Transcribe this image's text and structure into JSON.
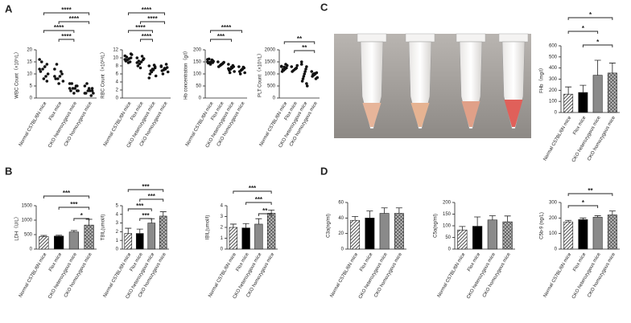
{
  "panel_labels": [
    "A",
    "C",
    "B",
    "D"
  ],
  "chart_data": [
    {
      "type": "dot",
      "ylabel": "WBC Count（×10⁹/L）",
      "categories": [
        "Normal C57BL/6N mice",
        "Flox mice",
        "CKO heterozygous mice",
        "CKO homozygous mice"
      ],
      "values": [
        [
          16,
          14,
          13,
          12,
          11,
          10,
          9,
          8,
          15,
          12,
          7,
          13
        ],
        [
          12,
          10,
          9,
          8,
          8,
          7,
          11,
          6,
          14,
          9
        ],
        [
          6,
          5,
          4,
          4,
          3,
          3,
          5,
          2,
          6,
          4,
          3
        ],
        [
          5,
          4,
          3,
          3,
          2,
          2,
          1,
          4,
          6,
          2,
          3
        ]
      ],
      "ylim": [
        0,
        20
      ],
      "yticks": [
        0,
        5,
        10,
        15,
        20
      ],
      "brackets": [
        {
          "groups": [
            "Normal C57BL/6N mice",
            "CKO homozygous mice"
          ],
          "label": "****"
        },
        {
          "groups": [
            "Flox mice",
            "CKO homozygous mice"
          ],
          "label": "****"
        },
        {
          "groups": [
            "Normal C57BL/6N mice",
            "CKO heterozygous mice"
          ],
          "label": "****"
        },
        {
          "groups": [
            "Flox mice",
            "CKO heterozygous mice"
          ],
          "label": "****"
        }
      ]
    },
    {
      "type": "dot",
      "ylabel": "RBC Count（×10¹²/L）",
      "categories": [
        "Normal C57BL/6N mice",
        "Flox mice",
        "CKO heterozygous mice",
        "CKO homozygous mice"
      ],
      "values": [
        [
          10.5,
          10,
          9.8,
          9.5,
          9.2,
          10.8,
          9,
          8.8,
          10.2,
          9.6,
          11
        ],
        [
          10,
          9.5,
          9,
          8.5,
          8,
          9.8,
          10.4,
          7.5,
          9.2,
          8.8
        ],
        [
          8,
          7.5,
          7,
          6.5,
          6,
          5.5,
          8.2,
          7.2,
          6.8,
          5,
          7.8
        ],
        [
          8,
          7.6,
          7.2,
          7,
          6.8,
          6.5,
          8.4,
          7.4,
          6,
          7.8
        ]
      ],
      "ylim": [
        0,
        12
      ],
      "yticks": [
        0,
        2,
        4,
        6,
        8,
        10,
        12
      ],
      "brackets": [
        {
          "groups": [
            "Normal C57BL/6N mice",
            "CKO homozygous mice"
          ],
          "label": "****"
        },
        {
          "groups": [
            "Flox mice",
            "CKO homozygous mice"
          ],
          "label": "****"
        },
        {
          "groups": [
            "Normal C57BL/6N mice",
            "CKO heterozygous mice"
          ],
          "label": "****"
        },
        {
          "groups": [
            "Flox mice",
            "CKO heterozygous mice"
          ],
          "label": "****"
        }
      ]
    },
    {
      "type": "dot",
      "ylabel": "Hb concentration（g/l）",
      "categories": [
        "Normal C57BL/6N mice",
        "Flox mice",
        "CKO heterozygous mice",
        "CKO homozygous mice"
      ],
      "values": [
        [
          160,
          155,
          150,
          148,
          145,
          152,
          158,
          140,
          162,
          150,
          147
        ],
        [
          150,
          145,
          140,
          135,
          130,
          148,
          142,
          138
        ],
        [
          140,
          130,
          125,
          120,
          115,
          110,
          135,
          128,
          105,
          122
        ],
        [
          130,
          125,
          120,
          115,
          110,
          105,
          128,
          118,
          100
        ]
      ],
      "ylim": [
        0,
        200
      ],
      "yticks": [
        0,
        50,
        100,
        150,
        200
      ],
      "brackets": [
        {
          "groups": [
            "Normal C57BL/6N mice",
            "CKO homozygous mice"
          ],
          "label": "****"
        },
        {
          "groups": [
            "Normal C57BL/6N mice",
            "CKO heterozygous mice"
          ],
          "label": "***"
        }
      ]
    },
    {
      "type": "dot",
      "ylabel": "PLT Count（×10⁹/L）",
      "categories": [
        "Normal C57BL/6N mice",
        "Flox mice",
        "CKO heterozygous mice",
        "CKO homozygous mice"
      ],
      "values": [
        [
          1300,
          1250,
          1200,
          1150,
          1100,
          1350,
          1400,
          1280,
          1180,
          1320
        ],
        [
          1300,
          1250,
          1200,
          1150,
          1100,
          1350,
          1220
        ],
        [
          1500,
          1300,
          1100,
          900,
          700,
          500,
          1200,
          1000,
          800,
          1400,
          600
        ],
        [
          1100,
          1050,
          1000,
          950,
          900,
          850,
          800,
          1020,
          980
        ]
      ],
      "ylim": [
        0,
        2000
      ],
      "yticks": [
        0,
        500,
        1000,
        1500,
        2000
      ],
      "brackets": [
        {
          "groups": [
            "Normal C57BL/6N mice",
            "CKO homozygous mice"
          ],
          "label": "**"
        },
        {
          "groups": [
            "Flox mice",
            "CKO homozygous mice"
          ],
          "label": "**"
        }
      ]
    },
    {
      "type": "bar",
      "ylabel": "FHb（mg/l）",
      "categories": [
        "Normal C57BL/6N mice",
        "Flox mice",
        "CKO heterozygous mice",
        "CKO homozygous mice"
      ],
      "values": [
        165,
        180,
        335,
        355
      ],
      "errors": [
        65,
        65,
        135,
        90
      ],
      "ylim": [
        0,
        600
      ],
      "yticks": [
        0,
        100,
        200,
        300,
        400,
        500,
        600
      ],
      "brackets": [
        {
          "groups": [
            "Normal C57BL/6N mice",
            "CKO homozygous mice"
          ],
          "label": "*"
        },
        {
          "groups": [
            "Normal C57BL/6N mice",
            "CKO heterozygous mice"
          ],
          "label": "*"
        },
        {
          "groups": [
            "Flox mice",
            "CKO homozygous mice"
          ],
          "label": "*"
        }
      ]
    },
    {
      "type": "bar",
      "ylabel": "LDH（U/L）",
      "categories": [
        "Normal C57BL/6N mice",
        "Flox mice",
        "CKO heterozygous mice",
        "CKO homozygous mice"
      ],
      "values": [
        430,
        450,
        590,
        830
      ],
      "errors": [
        40,
        30,
        50,
        200
      ],
      "ylim": [
        0,
        1500
      ],
      "yticks": [
        0,
        500,
        1000,
        1500
      ],
      "brackets": [
        {
          "groups": [
            "Normal C57BL/6N mice",
            "CKO homozygous mice"
          ],
          "label": "***"
        },
        {
          "groups": [
            "Flox mice",
            "CKO homozygous mice"
          ],
          "label": "***"
        },
        {
          "groups": [
            "CKO heterozygous mice",
            "CKO homozygous mice"
          ],
          "label": "*"
        }
      ]
    },
    {
      "type": "bar",
      "ylabel": "TBIL(umol/l)",
      "categories": [
        "Normal C57BL/6N mice",
        "Flox mice",
        "CKO heterozygous mice",
        "CKO homozygous mice"
      ],
      "values": [
        1.8,
        1.8,
        3.0,
        3.8
      ],
      "errors": [
        0.6,
        0.5,
        0.5,
        0.5
      ],
      "ylim": [
        0,
        5
      ],
      "yticks": [
        0,
        1,
        2,
        3,
        4,
        5
      ],
      "brackets": [
        {
          "groups": [
            "Normal C57BL/6N mice",
            "CKO homozygous mice"
          ],
          "label": "***"
        },
        {
          "groups": [
            "Flox mice",
            "CKO homozygous mice"
          ],
          "label": "***"
        },
        {
          "groups": [
            "Normal C57BL/6N mice",
            "CKO heterozygous mice"
          ],
          "label": "***"
        },
        {
          "groups": [
            "Flox mice",
            "CKO heterozygous mice"
          ],
          "label": "***"
        }
      ]
    },
    {
      "type": "bar",
      "ylabel": "IBIL(umol/l)",
      "categories": [
        "Normal C57BL/6N mice",
        "Flox mice",
        "CKO heterozygous mice",
        "CKO homozygous mice"
      ],
      "values": [
        2.0,
        1.95,
        2.3,
        3.3
      ],
      "errors": [
        0.3,
        0.4,
        0.5,
        0.3
      ],
      "ylim": [
        0,
        4
      ],
      "yticks": [
        0,
        1,
        2,
        3,
        4
      ],
      "brackets": [
        {
          "groups": [
            "Normal C57BL/6N mice",
            "CKO homozygous mice"
          ],
          "label": "***"
        },
        {
          "groups": [
            "Flox mice",
            "CKO homozygous mice"
          ],
          "label": "***"
        },
        {
          "groups": [
            "CKO heterozygous mice",
            "CKO homozygous mice"
          ],
          "label": "**"
        }
      ]
    },
    {
      "type": "bar",
      "ylabel": "C3a(ng/ml)",
      "categories": [
        "Normal C57BL/6N mice",
        "Flox mice",
        "CKO heterozygous mice",
        "CKO homozygous mice"
      ],
      "values": [
        37,
        40,
        46,
        46
      ],
      "errors": [
        5,
        9,
        7,
        7
      ],
      "ylim": [
        0,
        60
      ],
      "yticks": [
        0,
        20,
        40,
        60
      ],
      "brackets": []
    },
    {
      "type": "bar",
      "ylabel": "C5a(ng/ml)",
      "categories": [
        "Normal C57BL/6N mice",
        "Flox mice",
        "CKO heterozygous mice",
        "CKO homozygous mice"
      ],
      "values": [
        82,
        98,
        125,
        117
      ],
      "errors": [
        15,
        40,
        18,
        25
      ],
      "ylim": [
        0,
        200
      ],
      "yticks": [
        0,
        50,
        100,
        150,
        200
      ],
      "brackets": []
    },
    {
      "type": "bar",
      "ylabel": "C5b-9 (ng/L)",
      "categories": [
        "Normal C57BL/6N mice",
        "Flox mice",
        "CKO heterozygous mice",
        "CKO homozygous mice"
      ],
      "values": [
        175,
        190,
        205,
        220
      ],
      "errors": [
        10,
        10,
        10,
        25
      ],
      "ylim": [
        0,
        300
      ],
      "yticks": [
        0,
        100,
        200,
        300
      ],
      "brackets": [
        {
          "groups": [
            "Normal C57BL/6N mice",
            "CKO homozygous mice"
          ],
          "label": "**"
        },
        {
          "groups": [
            "Normal C57BL/6N mice",
            "CKO heterozygous mice"
          ],
          "label": "*"
        }
      ]
    }
  ]
}
